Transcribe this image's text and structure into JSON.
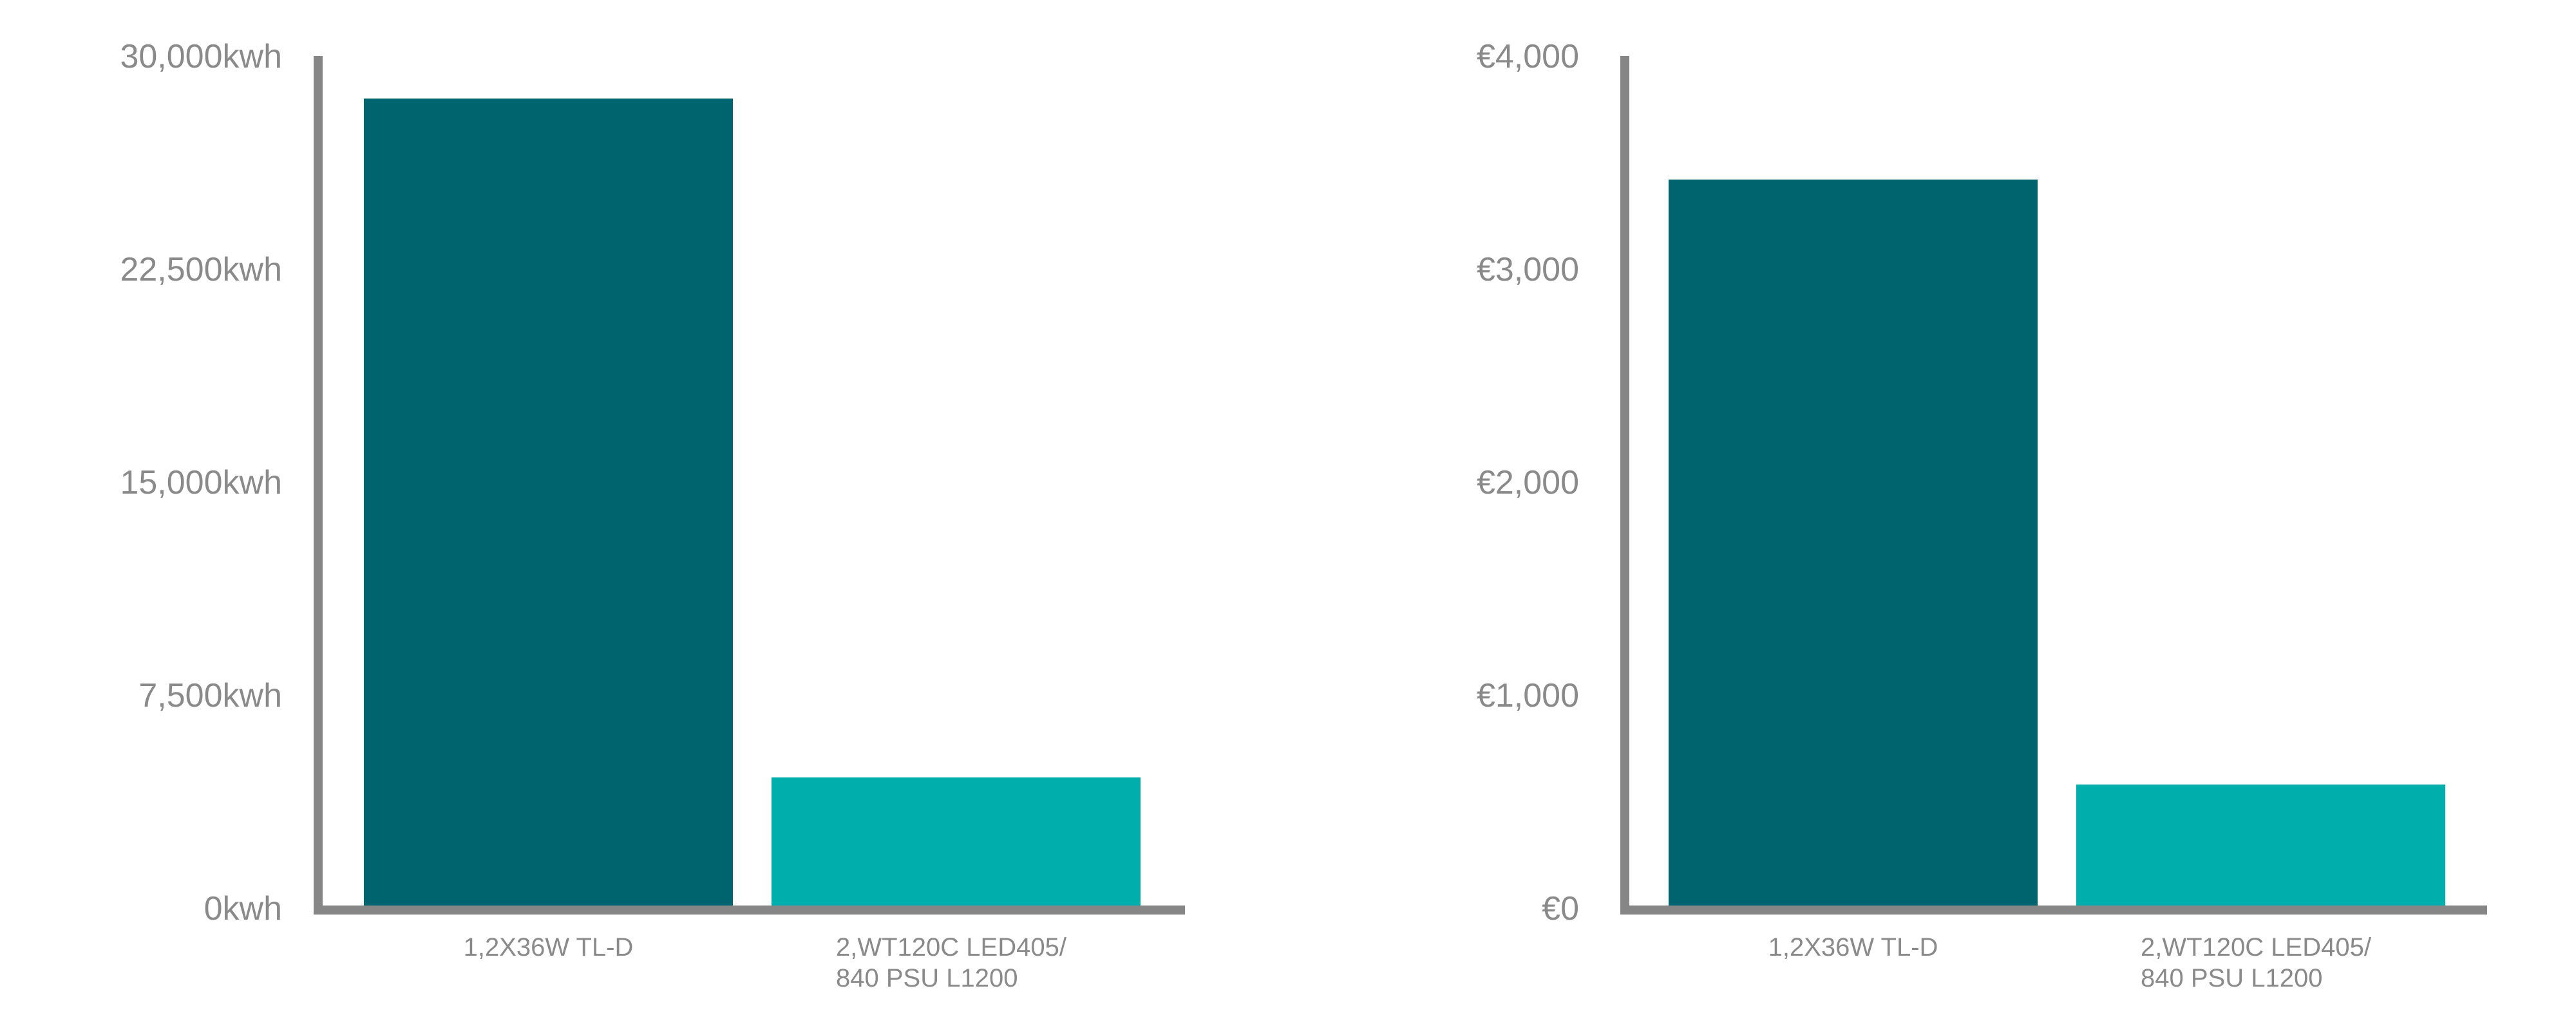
{
  "colors": {
    "axis": "#868686",
    "text": "#8a8a8a",
    "series_dark": "#00646E",
    "series_light": "#00AEAC"
  },
  "chart_data": [
    {
      "type": "bar",
      "title": "",
      "xlabel": "",
      "ylabel": "",
      "ylim": [
        0,
        30000
      ],
      "yticks": [
        0,
        7500,
        15000,
        22500,
        30000
      ],
      "ytick_labels": [
        "0kwh",
        "7,500kwh",
        "15,000kwh",
        "22,500kwh",
        "30,000kwh"
      ],
      "categories": [
        [
          "1,2X36W TL-D"
        ],
        [
          "2,WT120C LED405/",
          "840 PSU L1200"
        ]
      ],
      "values": [
        28500,
        4600
      ],
      "bar_colors": [
        "#00646E",
        "#00AEAC"
      ],
      "grid": false,
      "legend": "none"
    },
    {
      "type": "bar",
      "title": "",
      "xlabel": "",
      "ylabel": "",
      "ylim": [
        0,
        4000
      ],
      "yticks": [
        0,
        1000,
        2000,
        3000,
        4000
      ],
      "ytick_labels": [
        "€0",
        "€1,000",
        "€2,000",
        "€3,000",
        "€4,000"
      ],
      "categories": [
        [
          "1,2X36W TL-D"
        ],
        [
          "2,WT120C LED405/",
          "840 PSU L1200"
        ]
      ],
      "values": [
        3420,
        580
      ],
      "bar_colors": [
        "#00646E",
        "#00AEAC"
      ],
      "grid": false,
      "legend": "none"
    }
  ]
}
